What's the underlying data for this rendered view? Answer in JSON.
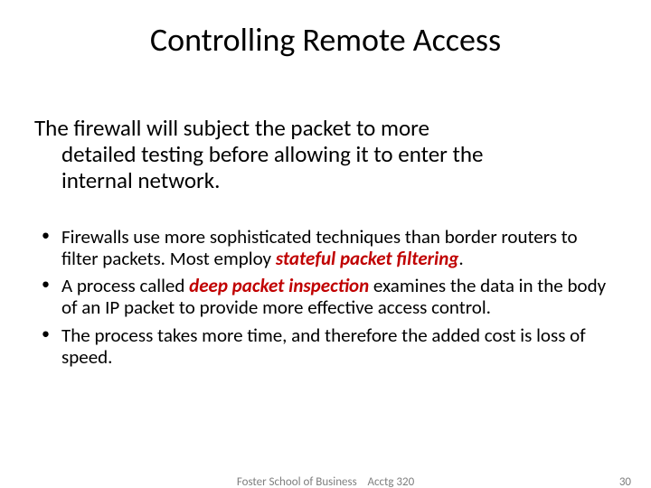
{
  "title": "Controlling Remote Access",
  "intro_line1": "The firewall will subject the packet to more",
  "intro_line2": "detailed testing before allowing it to enter the",
  "intro_line3": "internal network.",
  "bullets": [
    {
      "pre": "Firewalls use more sophisticated techniques than border routers to filter packets. Most employ ",
      "emph": "stateful packet filtering",
      "post": "."
    },
    {
      "pre": "A process called ",
      "emph": "deep packet inspection",
      "post": " examines the data in the body of an IP packet to provide more effective access control."
    },
    {
      "pre": "The process takes more time, and therefore the added cost is loss of speed.",
      "emph": "",
      "post": ""
    }
  ],
  "footer": {
    "center_left": "Foster School of Business",
    "center_right": "Acctg 320",
    "pagenum": "30"
  },
  "colors": {
    "emphasis": "#c00000",
    "text": "#000000",
    "footer": "#7f7f7f",
    "background": "#ffffff"
  },
  "fonts": {
    "title_size_pt": 36,
    "intro_size_pt": 25,
    "bullet_size_pt": 21,
    "footer_size_pt": 13
  }
}
